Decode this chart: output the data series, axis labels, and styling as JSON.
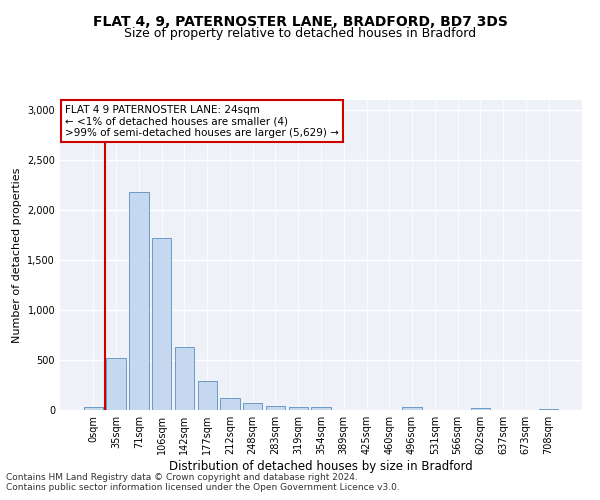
{
  "title": "FLAT 4, 9, PATERNOSTER LANE, BRADFORD, BD7 3DS",
  "subtitle": "Size of property relative to detached houses in Bradford",
  "xlabel": "Distribution of detached houses by size in Bradford",
  "ylabel": "Number of detached properties",
  "bar_labels": [
    "0sqm",
    "35sqm",
    "71sqm",
    "106sqm",
    "142sqm",
    "177sqm",
    "212sqm",
    "248sqm",
    "283sqm",
    "319sqm",
    "354sqm",
    "389sqm",
    "425sqm",
    "460sqm",
    "496sqm",
    "531sqm",
    "566sqm",
    "602sqm",
    "637sqm",
    "673sqm",
    "708sqm"
  ],
  "bar_values": [
    30,
    520,
    2180,
    1720,
    635,
    290,
    125,
    70,
    45,
    35,
    35,
    0,
    0,
    0,
    28,
    0,
    0,
    20,
    0,
    0,
    15
  ],
  "bar_color": "#c5d8f0",
  "bar_edge_color": "#5a8fc0",
  "annotation_text": "FLAT 4 9 PATERNOSTER LANE: 24sqm\n← <1% of detached houses are smaller (4)\n>99% of semi-detached houses are larger (5,629) →",
  "annotation_box_color": "#ffffff",
  "annotation_box_edge_color": "#cc0000",
  "ylim": [
    0,
    3100
  ],
  "yticks": [
    0,
    500,
    1000,
    1500,
    2000,
    2500,
    3000
  ],
  "background_color": "#eef2f8",
  "footer_line1": "Contains HM Land Registry data © Crown copyright and database right 2024.",
  "footer_line2": "Contains public sector information licensed under the Open Government Licence v3.0.",
  "title_fontsize": 10,
  "subtitle_fontsize": 9,
  "xlabel_fontsize": 8.5,
  "ylabel_fontsize": 8,
  "tick_fontsize": 7,
  "annotation_fontsize": 7.5,
  "footer_fontsize": 6.5
}
